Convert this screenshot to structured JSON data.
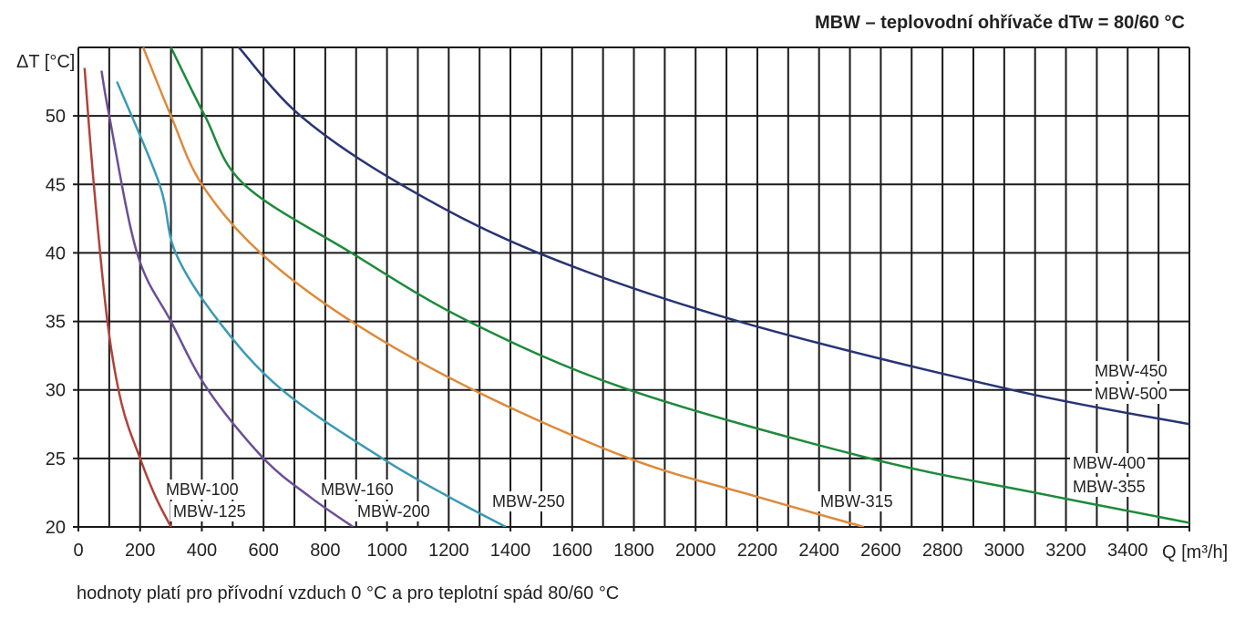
{
  "chart_data": {
    "type": "line",
    "title": "MBW – teplovodní ohřívače dTw = 80/60 °C",
    "xlabel": "Q [m³/h]",
    "ylabel": "ΔT [°C]",
    "xlim": [
      0,
      3600
    ],
    "ylim": [
      20,
      55
    ],
    "grid": true,
    "x_ticks": [
      0,
      200,
      400,
      600,
      800,
      1000,
      1200,
      1400,
      1600,
      1800,
      2000,
      2200,
      2400,
      2600,
      2800,
      3000,
      3200,
      3400
    ],
    "y_ticks": [
      20,
      25,
      30,
      35,
      40,
      45,
      50
    ],
    "note": "hodnoty platí pro přívodní vzduch 0 °C a pro teplotní spád 80/60 °C",
    "series": [
      {
        "name": "MBW-100 / MBW-125",
        "labels": [
          "MBW-100",
          "MBW-125"
        ],
        "color": "#b0423a",
        "x": [
          20,
          50,
          94,
          140,
          200,
          250,
          300
        ],
        "y": [
          53.5,
          45,
          35,
          29,
          25,
          22.2,
          20
        ]
      },
      {
        "name": "MBW-160 / MBW-200",
        "labels": [
          "MBW-160",
          "MBW-200"
        ],
        "color": "#6b4f96",
        "x": [
          75,
          100,
          190,
          300,
          420,
          600,
          750,
          890
        ],
        "y": [
          53.3,
          50,
          40,
          35,
          30,
          25,
          22.2,
          20
        ]
      },
      {
        "name": "MBW-250",
        "labels": [
          "MBW-250"
        ],
        "color": "#3a9ab5",
        "x": [
          125,
          263,
          315,
          455,
          660,
          985,
          1200,
          1385
        ],
        "y": [
          52.5,
          45,
          40,
          35,
          30,
          25,
          22.2,
          20
        ]
      },
      {
        "name": "MBW-315",
        "labels": [
          "MBW-315"
        ],
        "color": "#dd8a3c",
        "x": [
          210,
          300,
          400,
          590,
          885,
          1280,
          1785,
          2200,
          2545
        ],
        "y": [
          55,
          50,
          45,
          40,
          35,
          30,
          25,
          22.2,
          20
        ]
      },
      {
        "name": "MBW-400 / MBW-355",
        "labels": [
          "MBW-400",
          "MBW-355"
        ],
        "color": "#1e8a3c",
        "x": [
          300,
          410,
          537,
          885,
          1265,
          1785,
          2565,
          3100,
          3600
        ],
        "y": [
          55,
          50,
          45,
          40,
          35,
          30,
          25,
          22.5,
          20.3
        ]
      },
      {
        "name": "MBW-450 / MBW-500",
        "labels": [
          "MBW-450",
          "MBW-500"
        ],
        "color": "#283474",
        "x": [
          520,
          720,
          1045,
          1490,
          2140,
          3025,
          3600
        ],
        "y": [
          55,
          50,
          45,
          40,
          35,
          30,
          27.5
        ]
      }
    ]
  }
}
